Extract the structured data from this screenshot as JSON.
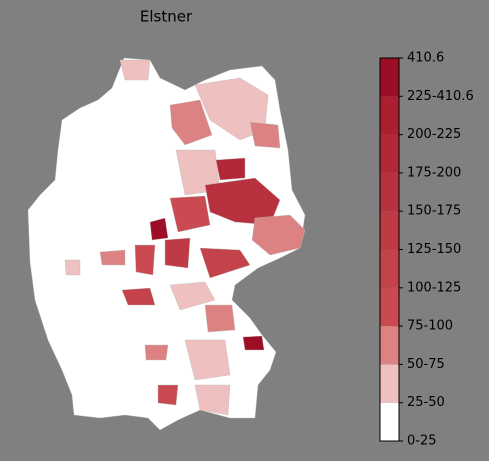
{
  "chart_data": {
    "type": "choropleth",
    "title": "Elstner",
    "colorbar": {
      "ticks": [
        "0-25",
        "25-50",
        "50-75",
        "75-100",
        "100-125",
        "125-150",
        "150-175",
        "175-200",
        "200-225",
        "225-410.6",
        410.6
      ],
      "colors": [
        "#ffffff",
        "#efc0c0",
        "#dc8282",
        "#c94a50",
        "#c4424a",
        "#be3a44",
        "#b8313e",
        "#b22838",
        "#ab1f31",
        "#9c0e25"
      ]
    }
  }
}
